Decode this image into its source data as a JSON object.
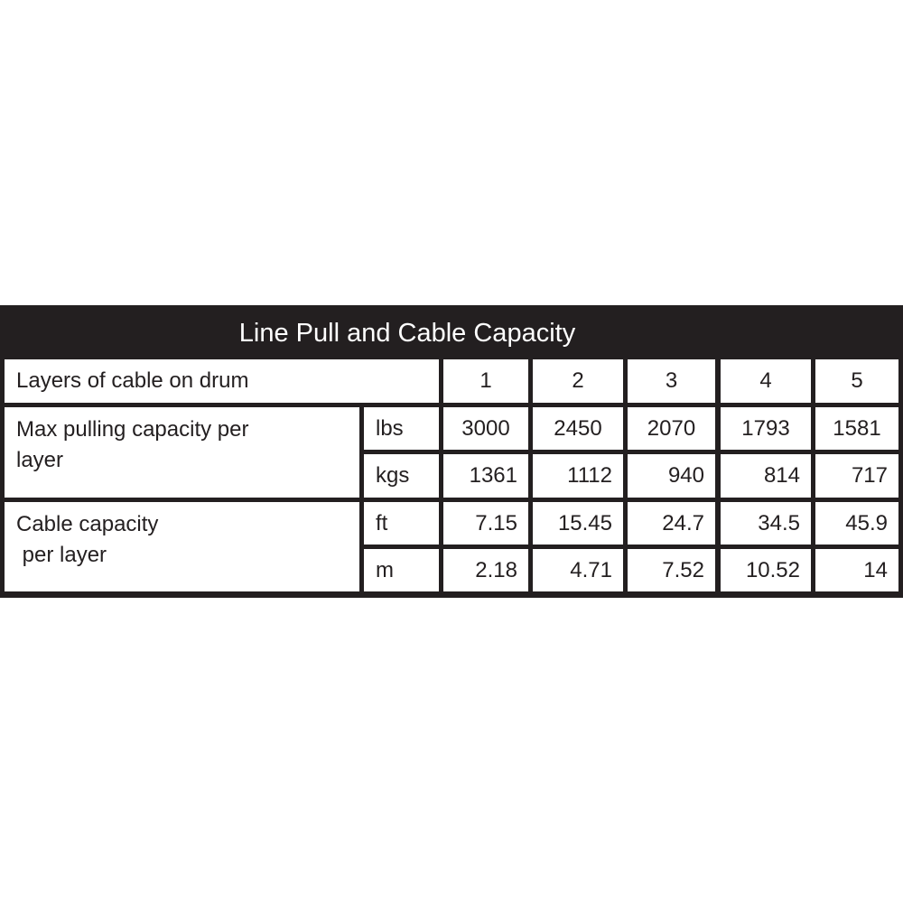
{
  "table": {
    "title": "Line Pull and Cable Capacity",
    "header": {
      "label": "Layers of cable on drum",
      "layers": [
        "1",
        "2",
        "3",
        "4",
        "5"
      ]
    },
    "groups": [
      {
        "label": "Max pulling capacity per\nlayer",
        "rows": [
          {
            "unit": "lbs",
            "values": [
              "3000",
              "2450",
              "2070",
              "1793",
              "1581"
            ]
          },
          {
            "unit": "kgs",
            "values": [
              "1361",
              "1112",
              "940",
              "814",
              "717"
            ]
          }
        ]
      },
      {
        "label": "Cable capacity\n per layer",
        "rows": [
          {
            "unit": "ft",
            "values": [
              "7.15",
              "15.45",
              "24.7",
              "34.5",
              "45.9"
            ]
          },
          {
            "unit": "m",
            "values": [
              "2.18",
              "4.71",
              "7.52",
              "10.52",
              "14"
            ]
          }
        ]
      }
    ]
  },
  "colors": {
    "background_band": "#231f20",
    "cell": "#ffffff",
    "text": "#231f20"
  }
}
